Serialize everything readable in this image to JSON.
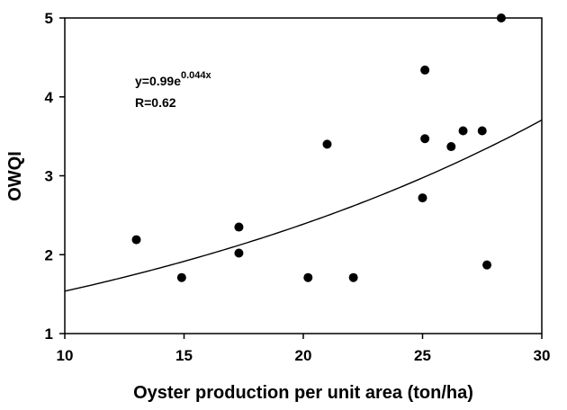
{
  "chart_data": {
    "type": "scatter",
    "xlabel": "Oyster production per unit area (ton/ha)",
    "ylabel": "OWQI",
    "xlim": [
      10,
      30
    ],
    "ylim": [
      1,
      5
    ],
    "xticks": [
      10,
      15,
      20,
      25,
      30
    ],
    "yticks": [
      1,
      2,
      3,
      4,
      5
    ],
    "grid": false,
    "points": [
      {
        "x": 13.0,
        "y": 2.19
      },
      {
        "x": 14.9,
        "y": 1.71
      },
      {
        "x": 17.3,
        "y": 2.35
      },
      {
        "x": 17.3,
        "y": 2.02
      },
      {
        "x": 20.2,
        "y": 1.71
      },
      {
        "x": 21.0,
        "y": 3.4
      },
      {
        "x": 22.1,
        "y": 1.71
      },
      {
        "x": 25.0,
        "y": 2.72
      },
      {
        "x": 25.1,
        "y": 4.34
      },
      {
        "x": 25.1,
        "y": 3.47
      },
      {
        "x": 26.2,
        "y": 3.37
      },
      {
        "x": 26.7,
        "y": 3.57
      },
      {
        "x": 27.5,
        "y": 3.57
      },
      {
        "x": 27.7,
        "y": 1.87
      },
      {
        "x": 28.3,
        "y": 5.0
      }
    ],
    "fit": {
      "type": "exponential",
      "a": 0.99,
      "b": 0.044,
      "x_range": [
        10,
        30
      ]
    },
    "annotation": {
      "equation_base": "y=0.99e",
      "equation_exponent": "0.044x",
      "r_text": "R=0.62"
    }
  }
}
